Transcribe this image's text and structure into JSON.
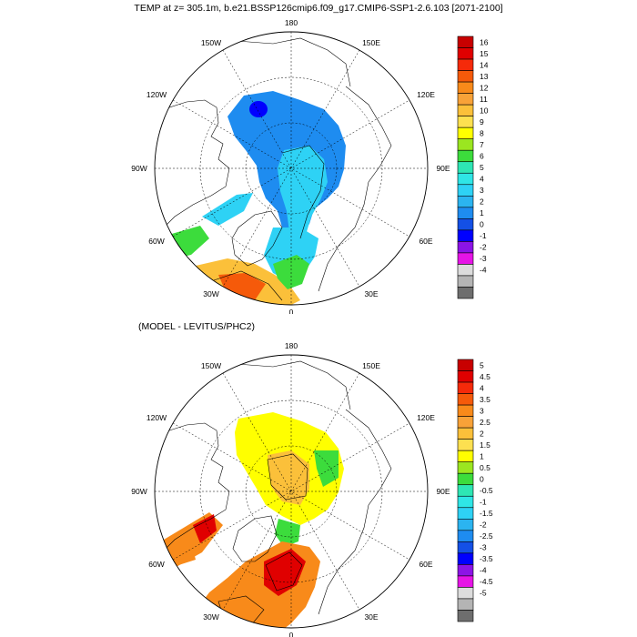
{
  "title": "TEMP at z= 305.1m, b.e21.BSSP126cmip6.f09_g17.CMIP6-SSP1-2.6.103 [2071-2100]",
  "subtitle": "(MODEL - LEVITUS/PHC2)",
  "longitude_labels": {
    "top": "180",
    "upper_left": "150W",
    "upper_right": "150E",
    "left_high": "120W",
    "right_high": "120E",
    "left": "90W",
    "right": "90E",
    "left_low": "60W",
    "right_low": "60E",
    "lower_left": "30W",
    "lower_right": "30E",
    "bottom": "0"
  },
  "colorbars": [
    {
      "labels": [
        "16",
        "15",
        "14",
        "13",
        "12",
        "11",
        "10",
        "9",
        "8",
        "7",
        "6",
        "5",
        "4",
        "3",
        "2",
        "1",
        "0",
        "-1",
        "-2",
        "-3",
        "-4"
      ],
      "colors": [
        "#c80000",
        "#e00000",
        "#f52a0a",
        "#f55a0a",
        "#f88a1a",
        "#f8a238",
        "#fbc03a",
        "#fde050",
        "#ffff00",
        "#9be620",
        "#3cdc3c",
        "#2ee6b4",
        "#2fe6e6",
        "#2ed2f5",
        "#2bb4f0",
        "#1e8cf0",
        "#1450e6",
        "#0000ff",
        "#8c14e6",
        "#e614e6",
        "#dcdcdc",
        "#b4b4b4",
        "#6e6e6e"
      ]
    },
    {
      "labels": [
        "5",
        "4.5",
        "4",
        "3.5",
        "3",
        "2.5",
        "2",
        "1.5",
        "1",
        "0.5",
        "0",
        "-0.5",
        "-1",
        "-1.5",
        "-2",
        "-2.5",
        "-3",
        "-3.5",
        "-4",
        "-4.5",
        "-5"
      ],
      "colors": [
        "#c80000",
        "#e00000",
        "#f52a0a",
        "#f55a0a",
        "#f88a1a",
        "#f8a238",
        "#fbc03a",
        "#fde050",
        "#ffff00",
        "#9be620",
        "#3cdc3c",
        "#2ee6b4",
        "#2fe6e6",
        "#2ed2f5",
        "#2bb4f0",
        "#1e8cf0",
        "#1450e6",
        "#0000ff",
        "#8c14e6",
        "#e614e6",
        "#dcdcdc",
        "#b4b4b4",
        "#6e6e6e"
      ]
    }
  ]
}
